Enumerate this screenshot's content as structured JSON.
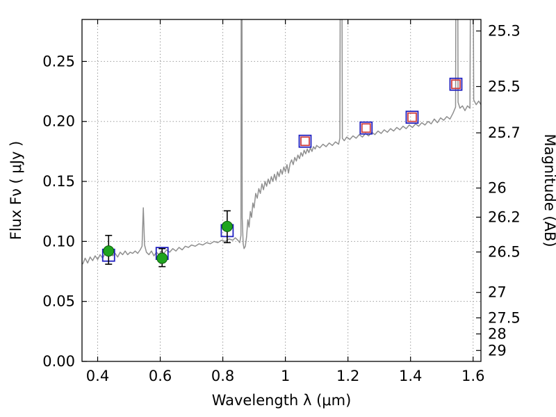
{
  "chart_data": {
    "type": "line",
    "title": "",
    "xlabel": "Wavelength  λ (μm)",
    "ylabel": "Flux  Fν  ( μJy )",
    "ylabel_right": "Magnitude (AB)",
    "xlim": [
      0.35,
      1.625
    ],
    "ylim": [
      0.0,
      0.285
    ],
    "grid": true,
    "legend": "none",
    "x_ticks": [
      {
        "v": 0.4,
        "label": "0.4"
      },
      {
        "v": 0.6,
        "label": "0.6"
      },
      {
        "v": 0.8,
        "label": "0.8"
      },
      {
        "v": 1.0,
        "label": "1"
      },
      {
        "v": 1.2,
        "label": "1.2"
      },
      {
        "v": 1.4,
        "label": "1.4"
      },
      {
        "v": 1.6,
        "label": "1.6"
      }
    ],
    "y_ticks_left": [
      {
        "v": 0.0,
        "label": "0.00"
      },
      {
        "v": 0.05,
        "label": "0.05"
      },
      {
        "v": 0.1,
        "label": "0.10"
      },
      {
        "v": 0.15,
        "label": "0.15"
      },
      {
        "v": 0.2,
        "label": "0.20"
      },
      {
        "v": 0.25,
        "label": "0.25"
      }
    ],
    "y_ticks_right": [
      {
        "mag": 25.3,
        "flux": 0.2754,
        "label": "25.3"
      },
      {
        "mag": 25.5,
        "flux": 0.2291,
        "label": "25.5"
      },
      {
        "mag": 25.7,
        "flux": 0.1905,
        "label": "25.7"
      },
      {
        "mag": 26.0,
        "flux": 0.1445,
        "label": "26"
      },
      {
        "mag": 26.2,
        "flux": 0.1202,
        "label": "26.2"
      },
      {
        "mag": 26.5,
        "flux": 0.0912,
        "label": "26.5"
      },
      {
        "mag": 27.0,
        "flux": 0.0575,
        "label": "27"
      },
      {
        "mag": 27.5,
        "flux": 0.0363,
        "label": "27.5"
      },
      {
        "mag": 28.0,
        "flux": 0.0229,
        "label": "28"
      },
      {
        "mag": 29.0,
        "flux": 0.0091,
        "label": "29"
      }
    ],
    "series": [
      {
        "name": "galaxy-spectrum",
        "kind": "line",
        "color": "#8f8f8f",
        "width": 1.5,
        "points": [
          [
            0.352,
            0.081
          ],
          [
            0.36,
            0.086
          ],
          [
            0.368,
            0.082
          ],
          [
            0.376,
            0.087
          ],
          [
            0.384,
            0.084
          ],
          [
            0.392,
            0.088
          ],
          [
            0.4,
            0.085
          ],
          [
            0.408,
            0.089
          ],
          [
            0.416,
            0.086
          ],
          [
            0.424,
            0.09
          ],
          [
            0.432,
            0.088
          ],
          [
            0.44,
            0.091
          ],
          [
            0.448,
            0.088
          ],
          [
            0.456,
            0.09
          ],
          [
            0.464,
            0.087
          ],
          [
            0.472,
            0.091
          ],
          [
            0.48,
            0.089
          ],
          [
            0.488,
            0.092
          ],
          [
            0.496,
            0.089
          ],
          [
            0.504,
            0.091
          ],
          [
            0.512,
            0.09
          ],
          [
            0.52,
            0.092
          ],
          [
            0.528,
            0.09
          ],
          [
            0.536,
            0.093
          ],
          [
            0.542,
            0.096
          ],
          [
            0.546,
            0.128
          ],
          [
            0.55,
            0.097
          ],
          [
            0.556,
            0.091
          ],
          [
            0.564,
            0.089
          ],
          [
            0.572,
            0.092
          ],
          [
            0.58,
            0.088
          ],
          [
            0.588,
            0.091
          ],
          [
            0.596,
            0.089
          ],
          [
            0.604,
            0.092
          ],
          [
            0.612,
            0.09
          ],
          [
            0.62,
            0.093
          ],
          [
            0.63,
            0.091
          ],
          [
            0.64,
            0.094
          ],
          [
            0.65,
            0.092
          ],
          [
            0.66,
            0.095
          ],
          [
            0.67,
            0.093
          ],
          [
            0.68,
            0.096
          ],
          [
            0.69,
            0.095
          ],
          [
            0.7,
            0.097
          ],
          [
            0.712,
            0.096
          ],
          [
            0.724,
            0.098
          ],
          [
            0.736,
            0.097
          ],
          [
            0.748,
            0.099
          ],
          [
            0.76,
            0.098
          ],
          [
            0.772,
            0.1
          ],
          [
            0.784,
            0.099
          ],
          [
            0.796,
            0.101
          ],
          [
            0.808,
            0.1
          ],
          [
            0.82,
            0.102
          ],
          [
            0.832,
            0.101
          ],
          [
            0.84,
            0.103
          ],
          [
            0.848,
            0.101
          ],
          [
            0.854,
            0.099
          ],
          [
            0.858,
            0.105
          ],
          [
            0.86,
            0.6
          ],
          [
            0.862,
            0.12
          ],
          [
            0.865,
            0.098
          ],
          [
            0.868,
            0.094
          ],
          [
            0.872,
            0.096
          ],
          [
            0.876,
            0.104
          ],
          [
            0.88,
            0.118
          ],
          [
            0.884,
            0.112
          ],
          [
            0.888,
            0.125
          ],
          [
            0.892,
            0.12
          ],
          [
            0.896,
            0.132
          ],
          [
            0.9,
            0.128
          ],
          [
            0.905,
            0.14
          ],
          [
            0.91,
            0.136
          ],
          [
            0.915,
            0.144
          ],
          [
            0.92,
            0.14
          ],
          [
            0.925,
            0.148
          ],
          [
            0.93,
            0.143
          ],
          [
            0.935,
            0.15
          ],
          [
            0.94,
            0.146
          ],
          [
            0.945,
            0.152
          ],
          [
            0.95,
            0.148
          ],
          [
            0.955,
            0.154
          ],
          [
            0.96,
            0.15
          ],
          [
            0.965,
            0.156
          ],
          [
            0.97,
            0.151
          ],
          [
            0.975,
            0.158
          ],
          [
            0.98,
            0.154
          ],
          [
            0.985,
            0.16
          ],
          [
            0.99,
            0.156
          ],
          [
            0.995,
            0.162
          ],
          [
            1.0,
            0.158
          ],
          [
            1.005,
            0.164
          ],
          [
            1.01,
            0.157
          ],
          [
            1.015,
            0.165
          ],
          [
            1.02,
            0.168
          ],
          [
            1.025,
            0.164
          ],
          [
            1.03,
            0.17
          ],
          [
            1.035,
            0.167
          ],
          [
            1.04,
            0.172
          ],
          [
            1.045,
            0.169
          ],
          [
            1.05,
            0.174
          ],
          [
            1.055,
            0.171
          ],
          [
            1.06,
            0.176
          ],
          [
            1.065,
            0.173
          ],
          [
            1.07,
            0.177
          ],
          [
            1.075,
            0.174
          ],
          [
            1.08,
            0.178
          ],
          [
            1.085,
            0.175
          ],
          [
            1.09,
            0.179
          ],
          [
            1.095,
            0.177
          ],
          [
            1.1,
            0.18
          ],
          [
            1.11,
            0.178
          ],
          [
            1.12,
            0.181
          ],
          [
            1.13,
            0.179
          ],
          [
            1.14,
            0.182
          ],
          [
            1.15,
            0.18
          ],
          [
            1.16,
            0.183
          ],
          [
            1.17,
            0.181
          ],
          [
            1.174,
            0.186
          ],
          [
            1.178,
            0.6
          ],
          [
            1.182,
            0.186
          ],
          [
            1.188,
            0.184
          ],
          [
            1.196,
            0.187
          ],
          [
            1.206,
            0.185
          ],
          [
            1.216,
            0.188
          ],
          [
            1.226,
            0.186
          ],
          [
            1.236,
            0.189
          ],
          [
            1.246,
            0.187
          ],
          [
            1.256,
            0.19
          ],
          [
            1.266,
            0.188
          ],
          [
            1.276,
            0.191
          ],
          [
            1.286,
            0.189
          ],
          [
            1.296,
            0.192
          ],
          [
            1.306,
            0.19
          ],
          [
            1.316,
            0.193
          ],
          [
            1.326,
            0.191
          ],
          [
            1.336,
            0.194
          ],
          [
            1.346,
            0.192
          ],
          [
            1.356,
            0.195
          ],
          [
            1.366,
            0.193
          ],
          [
            1.376,
            0.196
          ],
          [
            1.386,
            0.194
          ],
          [
            1.396,
            0.197
          ],
          [
            1.406,
            0.195
          ],
          [
            1.416,
            0.198
          ],
          [
            1.426,
            0.196
          ],
          [
            1.436,
            0.199
          ],
          [
            1.446,
            0.197
          ],
          [
            1.456,
            0.2
          ],
          [
            1.466,
            0.198
          ],
          [
            1.476,
            0.202
          ],
          [
            1.486,
            0.199
          ],
          [
            1.496,
            0.203
          ],
          [
            1.506,
            0.201
          ],
          [
            1.516,
            0.204
          ],
          [
            1.526,
            0.202
          ],
          [
            1.536,
            0.207
          ],
          [
            1.544,
            0.212
          ],
          [
            1.548,
            0.6
          ],
          [
            1.552,
            0.216
          ],
          [
            1.558,
            0.211
          ],
          [
            1.566,
            0.213
          ],
          [
            1.574,
            0.209
          ],
          [
            1.582,
            0.213
          ],
          [
            1.59,
            0.211
          ],
          [
            1.596,
            0.6
          ],
          [
            1.602,
            0.218
          ],
          [
            1.61,
            0.214
          ],
          [
            1.618,
            0.217
          ],
          [
            1.625,
            0.214
          ]
        ]
      },
      {
        "name": "photometry-blue-squares",
        "kind": "square",
        "color": "#2020c0",
        "stroke_width": 1.8,
        "size": 17,
        "points": [
          {
            "x": 0.435,
            "y": 0.0885
          },
          {
            "x": 0.606,
            "y": 0.09
          },
          {
            "x": 0.814,
            "y": 0.109
          },
          {
            "x": 1.063,
            "y": 0.1835
          },
          {
            "x": 1.258,
            "y": 0.1945
          },
          {
            "x": 1.405,
            "y": 0.2035
          },
          {
            "x": 1.545,
            "y": 0.231
          }
        ]
      },
      {
        "name": "photometry-red-squares",
        "kind": "square",
        "color": "#d04040",
        "stroke_width": 1.8,
        "size": 12,
        "points": [
          {
            "x": 1.063,
            "y": 0.1835
          },
          {
            "x": 1.258,
            "y": 0.1945
          },
          {
            "x": 1.405,
            "y": 0.2035
          },
          {
            "x": 1.545,
            "y": 0.231
          }
        ]
      },
      {
        "name": "photometry-green-circles",
        "kind": "circle",
        "fill": "#1fa41f",
        "edge": "#0c5c0c",
        "radius": 7.5,
        "errorbar_color": "#000000",
        "points": [
          {
            "x": 0.435,
            "y": 0.092,
            "err_lo": 0.011,
            "err_hi": 0.013
          },
          {
            "x": 0.606,
            "y": 0.086,
            "err_lo": 0.007,
            "err_hi": 0.008
          },
          {
            "x": 0.814,
            "y": 0.1125,
            "err_lo": 0.0135,
            "err_hi": 0.013
          }
        ]
      }
    ]
  }
}
